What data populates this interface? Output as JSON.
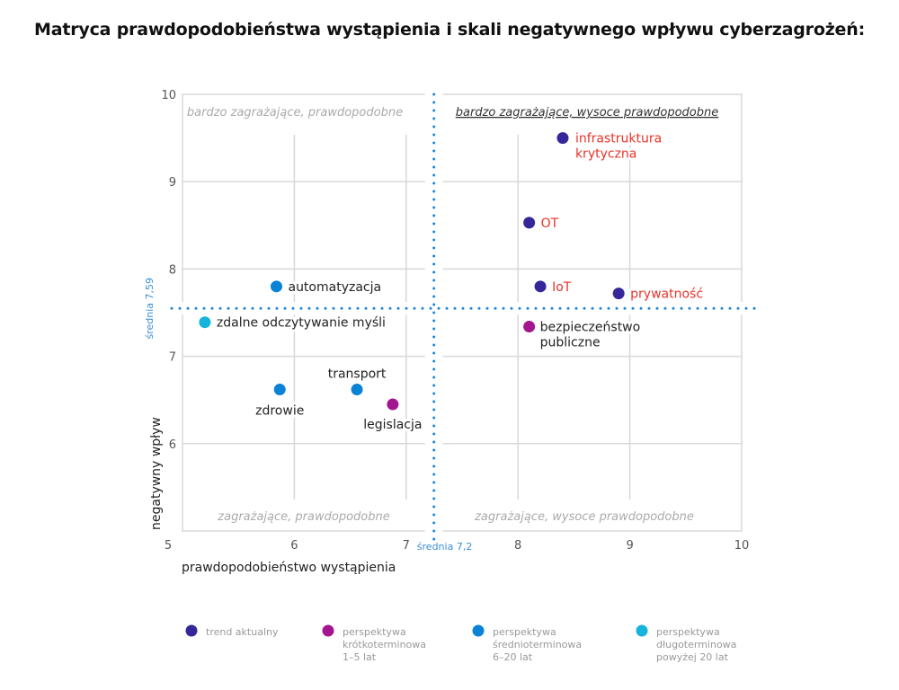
{
  "title": "Matryca prawdopodobieństwa wystąpienia i skali negatywnego wpływu cyberzagrożeń:",
  "chart_data": {
    "type": "scatter",
    "xlabel": "prawdopodobieństwo wystąpienia",
    "ylabel": "negatywny wpływ",
    "xlim": [
      5,
      10
    ],
    "ylim": [
      5,
      10
    ],
    "xticks": [
      "5",
      "6",
      "7",
      "8",
      "9",
      "10"
    ],
    "yticks": [
      "10",
      "9",
      "8",
      "7",
      "6"
    ],
    "grid": true,
    "mean_x": {
      "value": 7.2,
      "label": "średnia 7,2"
    },
    "mean_y": {
      "value": 7.59,
      "label": "średnia 7,59"
    },
    "quadrants": {
      "top_left": "bardzo zagrażające, prawdopodobne",
      "top_right": "bardzo zagrażające, wysoce prawdopodobne",
      "bottom_left": "zagrażające, prawdopodobne",
      "bottom_right": "zagrażające, wysoce prawdopodobne"
    },
    "series": [
      {
        "name": "trend aktualny",
        "color": "#35279a",
        "points": [
          {
            "label": "infrastruktura krytyczna",
            "x": 8.4,
            "y": 9.5,
            "label_color": "#e8332a"
          },
          {
            "label": "OT",
            "x": 8.1,
            "y": 8.53,
            "label_color": "#e8332a"
          },
          {
            "label": "IoT",
            "x": 8.2,
            "y": 7.8,
            "label_color": "#e8332a"
          },
          {
            "label": "prywatność",
            "x": 8.9,
            "y": 7.72,
            "label_color": "#e8332a"
          }
        ]
      },
      {
        "name": "perspektywa krótkoterminowa 1–5 lat",
        "color": "#a3168f",
        "points": [
          {
            "label": "bezpieczeństwo publiczne",
            "x": 8.1,
            "y": 7.34,
            "label_color": "#222222"
          },
          {
            "label": "legislacja",
            "x": 6.88,
            "y": 6.45,
            "label_color": "#222222"
          }
        ]
      },
      {
        "name": "perspektywa średnioterminowa 6–20 lat",
        "color": "#0a82d6",
        "points": [
          {
            "label": "automatyzacja",
            "x": 5.84,
            "y": 7.8,
            "label_color": "#222222"
          },
          {
            "label": "zdrowie",
            "x": 5.87,
            "y": 6.62,
            "label_color": "#222222"
          },
          {
            "label": "transport",
            "x": 6.56,
            "y": 6.62,
            "label_color": "#222222"
          }
        ]
      },
      {
        "name": "perspektywa długoterminowa powyżej 20 lat",
        "color": "#16b3dc",
        "points": [
          {
            "label": "zdalne odczytywanie myśli",
            "x": 5.2,
            "y": 7.39,
            "label_color": "#222222"
          }
        ]
      }
    ],
    "legend": {
      "placement": "bottom",
      "items": [
        [
          "trend aktualny"
        ],
        [
          "perspektywa",
          "krótkoterminowa",
          "1–5 lat"
        ],
        [
          "perspektywa",
          "średnioterminowa",
          "6–20 lat"
        ],
        [
          "perspektywa",
          "długoterminowa",
          "powyżej 20 lat"
        ]
      ]
    }
  }
}
